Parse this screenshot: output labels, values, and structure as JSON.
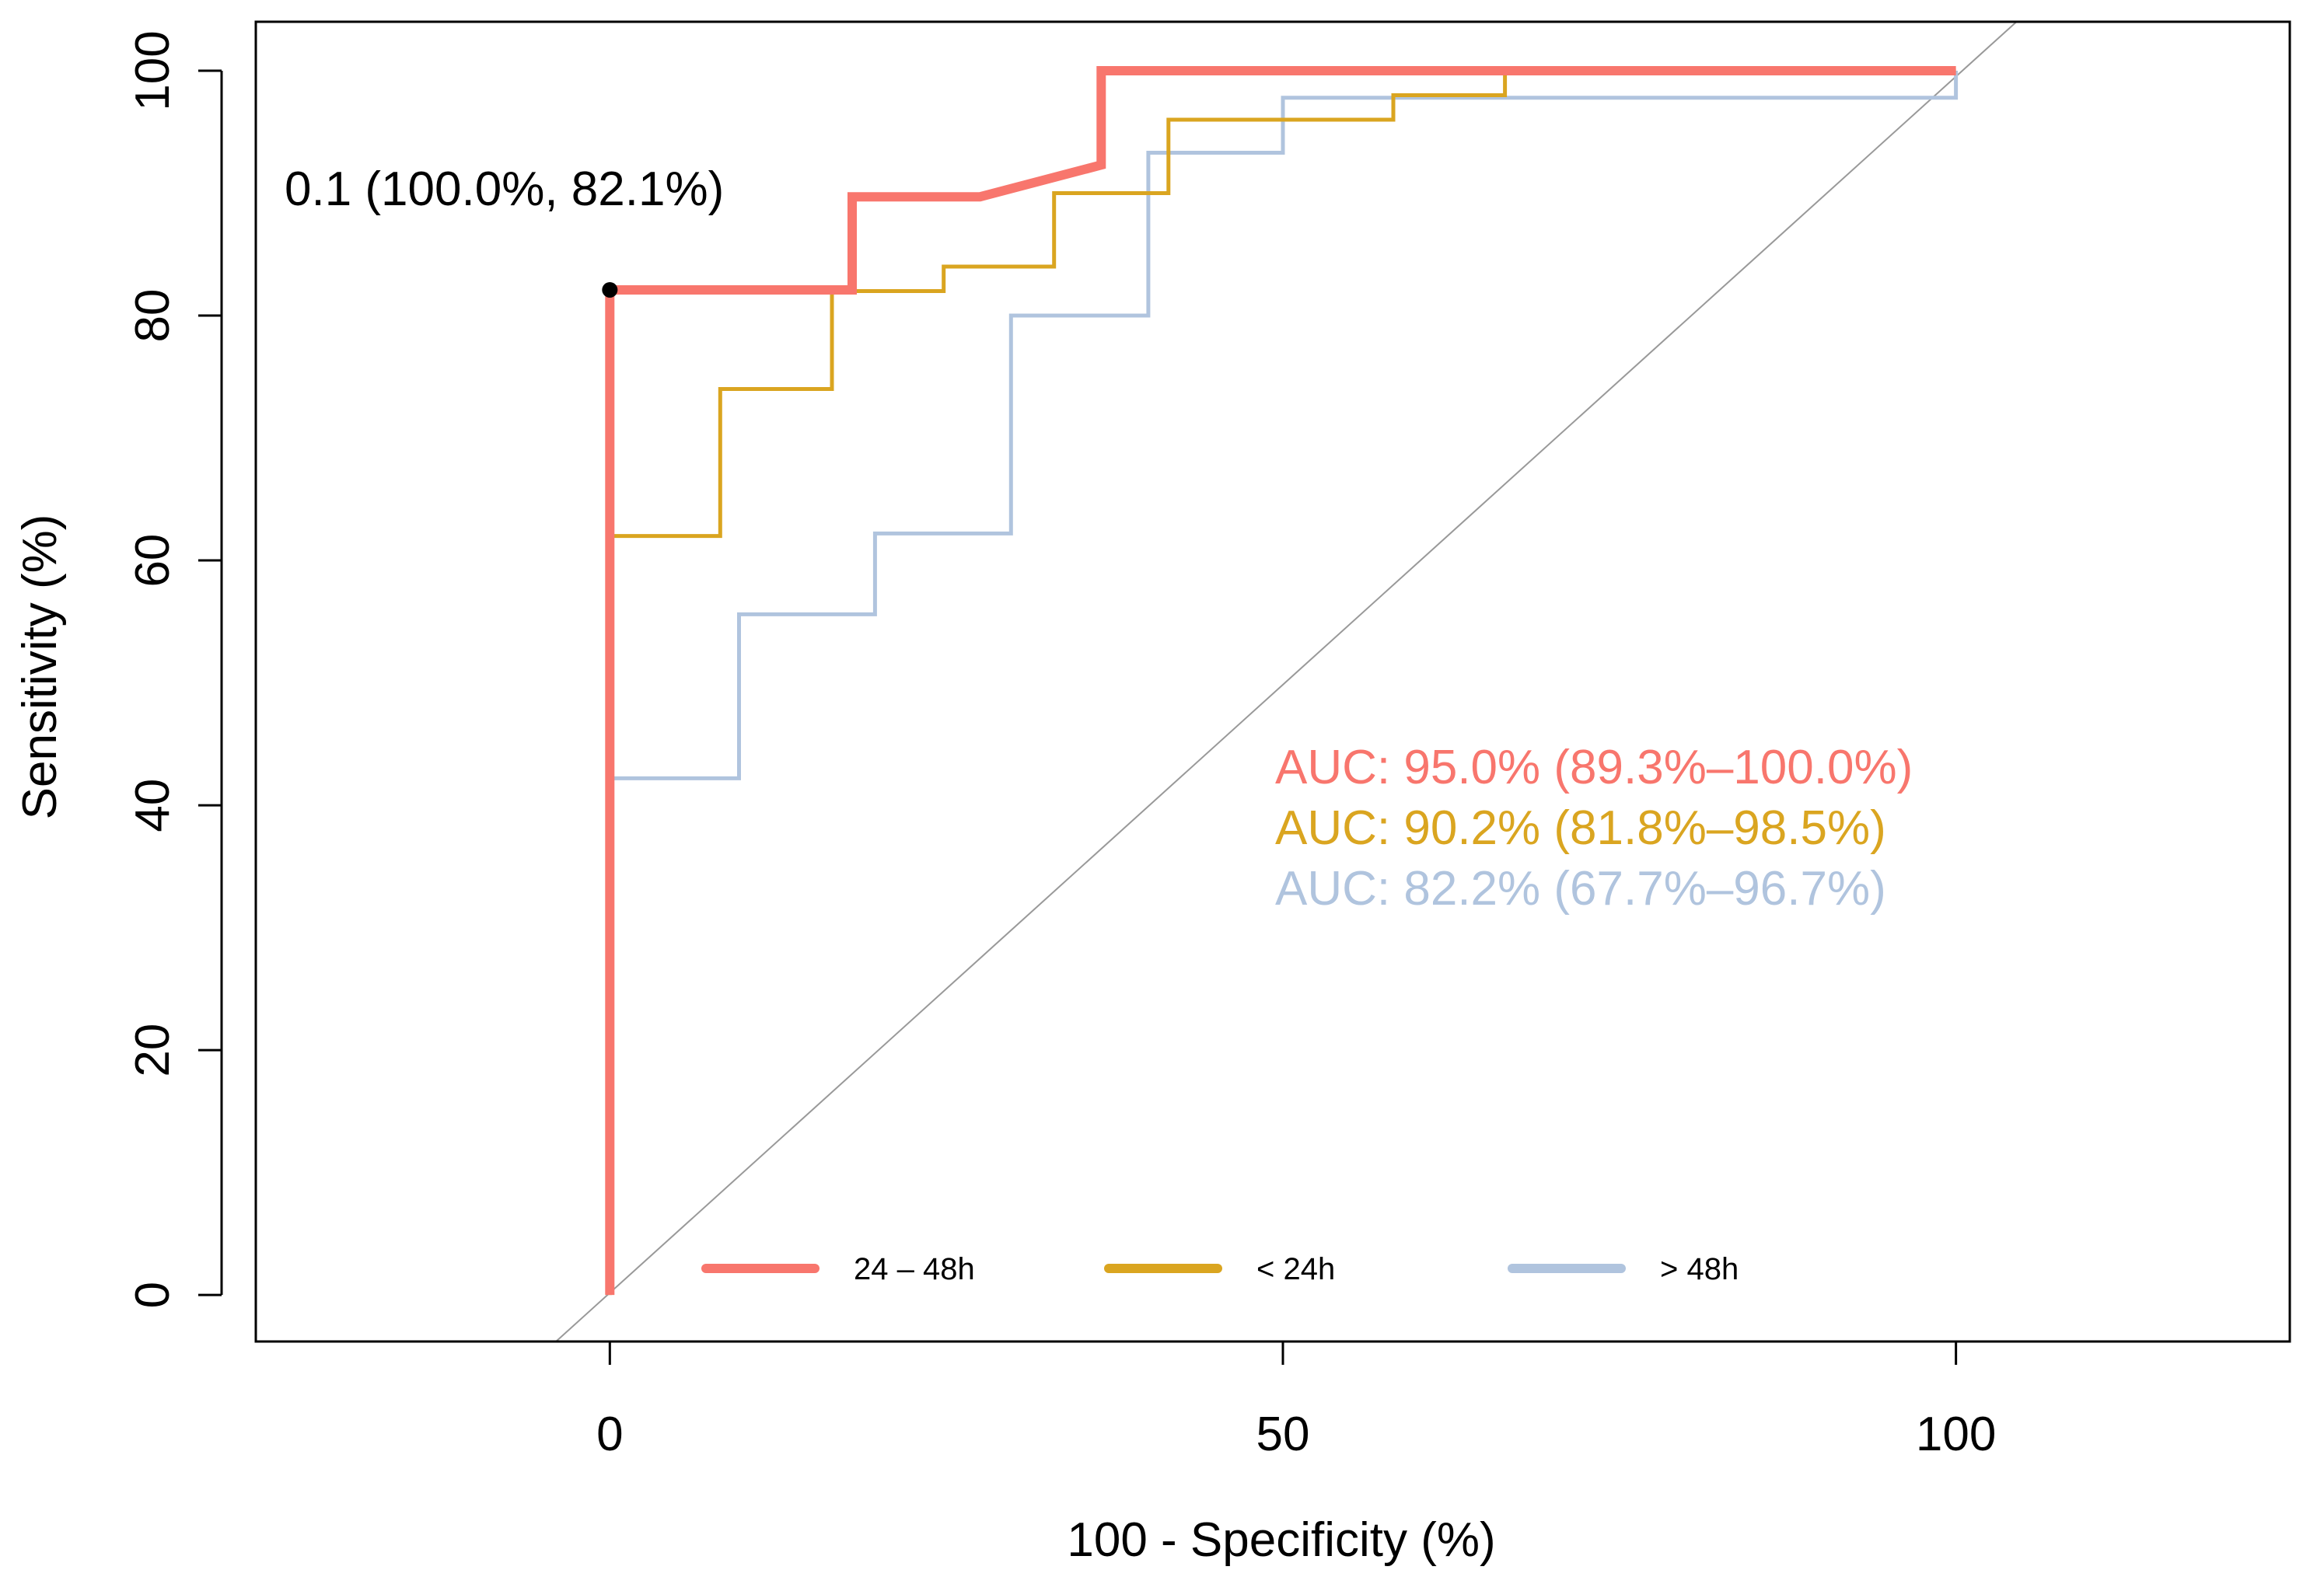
{
  "chart_data": {
    "type": "line",
    "subtype": "roc",
    "title": "",
    "xlabel": "100 - Specificity (%)",
    "ylabel": "Sensitivity (%)",
    "xlim": [
      -26.3,
      124.8
    ],
    "ylim": [
      -3.8,
      104
    ],
    "x_ticks": [
      0,
      50,
      100
    ],
    "x_tick_labels": [
      "0",
      "50",
      "100"
    ],
    "y_ticks": [
      0,
      20,
      40,
      60,
      80,
      100
    ],
    "y_tick_labels": [
      "0",
      "20",
      "40",
      "60",
      "80",
      "100"
    ],
    "grid": false,
    "legend_position": "bottom",
    "reference_line": [
      [
        -4,
        -3.8
      ],
      [
        104.5,
        104
      ]
    ],
    "series": [
      {
        "name": "24 – 48h",
        "color": "#F8766D",
        "width": "thick",
        "points": [
          [
            0,
            0
          ],
          [
            0,
            82.1
          ],
          [
            18,
            82.1
          ],
          [
            18,
            89.7
          ],
          [
            27.5,
            89.7
          ],
          [
            36.5,
            92.3
          ],
          [
            36.5,
            100
          ],
          [
            100,
            100
          ]
        ]
      },
      {
        "name": "< 24h",
        "color": "#DAA520",
        "width": "normal",
        "points": [
          [
            0,
            0
          ],
          [
            0,
            62
          ],
          [
            8.2,
            62
          ],
          [
            8.2,
            74
          ],
          [
            16.5,
            74
          ],
          [
            16.5,
            82
          ],
          [
            24.8,
            82
          ],
          [
            24.8,
            84
          ],
          [
            33,
            84
          ],
          [
            33,
            90
          ],
          [
            41.5,
            90
          ],
          [
            41.5,
            96
          ],
          [
            58.2,
            96
          ],
          [
            58.2,
            98
          ],
          [
            66.5,
            98
          ],
          [
            66.5,
            100
          ],
          [
            100,
            100
          ]
        ]
      },
      {
        "name": "> 48h",
        "color": "#B0C4DE",
        "width": "normal",
        "points": [
          [
            0,
            0
          ],
          [
            0,
            42.2
          ],
          [
            9.6,
            42.2
          ],
          [
            9.6,
            55.6
          ],
          [
            19.7,
            55.6
          ],
          [
            19.7,
            62.2
          ],
          [
            29.8,
            62.2
          ],
          [
            29.8,
            80
          ],
          [
            40,
            80
          ],
          [
            40,
            93.3
          ],
          [
            50,
            93.3
          ],
          [
            50,
            97.8
          ],
          [
            100,
            97.8
          ],
          [
            100,
            100
          ]
        ]
      }
    ],
    "auc_labels": [
      {
        "text": "AUC: 95.0% (89.3%–100.0%)",
        "color": "#F8766D"
      },
      {
        "text": "AUC: 90.2% (81.8%–98.5%)",
        "color": "#DAA520"
      },
      {
        "text": "AUC: 82.2% (67.7%–96.7%)",
        "color": "#B0C4DE"
      }
    ],
    "threshold": {
      "text": "0.1 (100.0%, 82.1%)",
      "x": 0,
      "y": 82.1,
      "color": "#000000"
    }
  }
}
